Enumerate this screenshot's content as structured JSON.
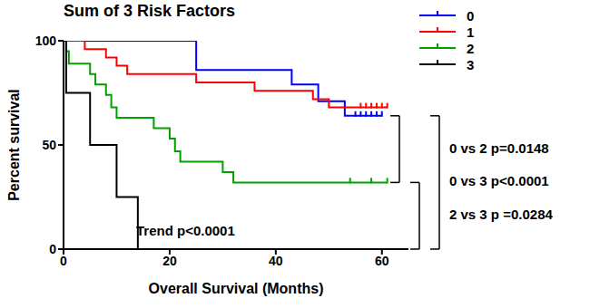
{
  "chart_data": {
    "type": "line",
    "title": "Sum of 3 Risk Factors",
    "x_label": "Overall Survival (Months)",
    "y_label": "Percent survival",
    "xlim": [
      0,
      65
    ],
    "xticks": [
      0,
      20,
      40,
      60
    ],
    "ylim": [
      0,
      100
    ],
    "yticks": [
      0,
      50,
      100
    ],
    "line_style": "step",
    "marker": "|",
    "legend": "upper right",
    "annotation": "Trend p<0.0001",
    "series": [
      {
        "name": "0",
        "color": "#0000ff",
        "x": [
          0,
          25,
          43,
          48,
          53,
          60
        ],
        "values": [
          100,
          86,
          79,
          71,
          64,
          64
        ],
        "censored": [
          55,
          56,
          57,
          58,
          59,
          60
        ]
      },
      {
        "name": "1",
        "color": "#ff0000",
        "x": [
          0,
          4,
          8,
          10,
          12,
          25,
          36,
          47,
          50,
          61
        ],
        "values": [
          100,
          96,
          92,
          88,
          84,
          80,
          76,
          72,
          68,
          68
        ],
        "censored": [
          56,
          57,
          58,
          59,
          60,
          61
        ]
      },
      {
        "name": "2",
        "color": "#00a000",
        "x": [
          0,
          0.5,
          1,
          5,
          6,
          8,
          9,
          10,
          17,
          20,
          21,
          22,
          30,
          32,
          61
        ],
        "values": [
          100,
          95,
          89,
          84,
          79,
          74,
          68,
          63,
          58,
          53,
          47,
          42,
          37,
          32,
          32
        ],
        "censored": [
          54,
          58,
          61
        ]
      },
      {
        "name": "3",
        "color": "#000000",
        "x": [
          0,
          0.5,
          5,
          10,
          14
        ],
        "values": [
          100,
          75,
          50,
          25,
          0
        ],
        "censored": []
      }
    ],
    "comparisons": [
      {
        "label": "0 vs 2 p=0.0148",
        "groups": [
          "0",
          "2"
        ]
      },
      {
        "label": "2 vs 3 p =0.0284",
        "groups": [
          "2",
          "3"
        ]
      },
      {
        "label": "0 vs 3 p<0.0001",
        "groups": [
          "0",
          "3"
        ]
      }
    ]
  }
}
